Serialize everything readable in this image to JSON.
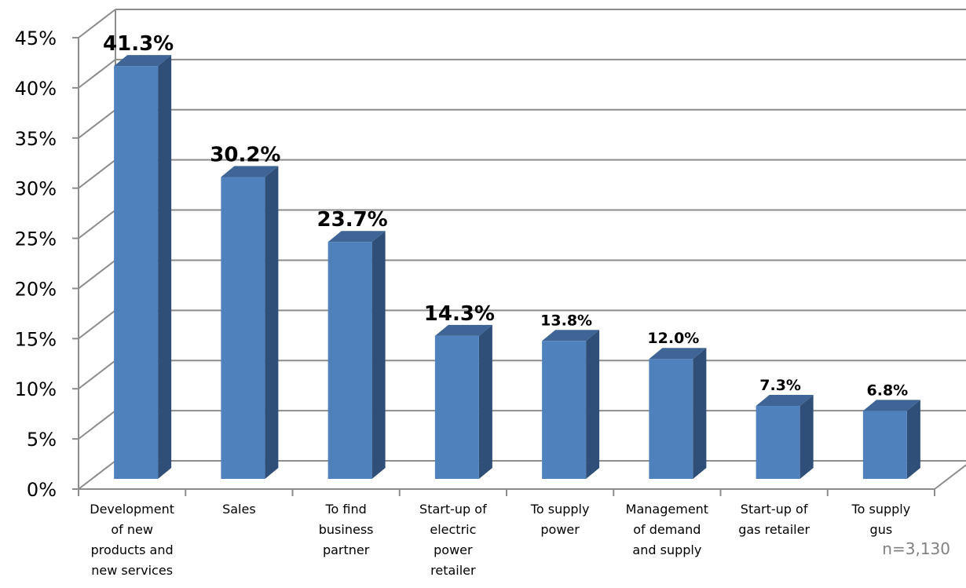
{
  "chart_data": {
    "type": "bar",
    "title": "",
    "xlabel": "",
    "ylabel": "",
    "categories": [
      [
        "Development",
        "of new",
        "products and",
        "new services"
      ],
      [
        "Sales"
      ],
      [
        "To find",
        "business",
        "partner"
      ],
      [
        "Start-up of",
        "electric",
        "power",
        "retailer"
      ],
      [
        "To supply",
        "power"
      ],
      [
        "Management",
        "of demand",
        "and supply"
      ],
      [
        "Start-up of",
        "gas retailer"
      ],
      [
        "To supply",
        "gus"
      ]
    ],
    "values": [
      41.3,
      30.2,
      23.7,
      14.3,
      13.8,
      12.0,
      7.3,
      6.8
    ],
    "data_labels": [
      "41.3%",
      "30.2%",
      "23.7%",
      "14.3%",
      "13.8%",
      "12.0%",
      "7.3%",
      "6.8%"
    ],
    "ylim": [
      0,
      45
    ],
    "yticks": [
      "0%",
      "5%",
      "10%",
      "15%",
      "20%",
      "25%",
      "30%",
      "35%",
      "40%",
      "45%"
    ],
    "grid": true,
    "three_d": true,
    "note": "n=3,130",
    "colors": {
      "bar_front": "#4f81bd",
      "bar_side": "#2f4f78",
      "bar_top": "#3f6596",
      "grid": "#8c8c8c"
    }
  }
}
